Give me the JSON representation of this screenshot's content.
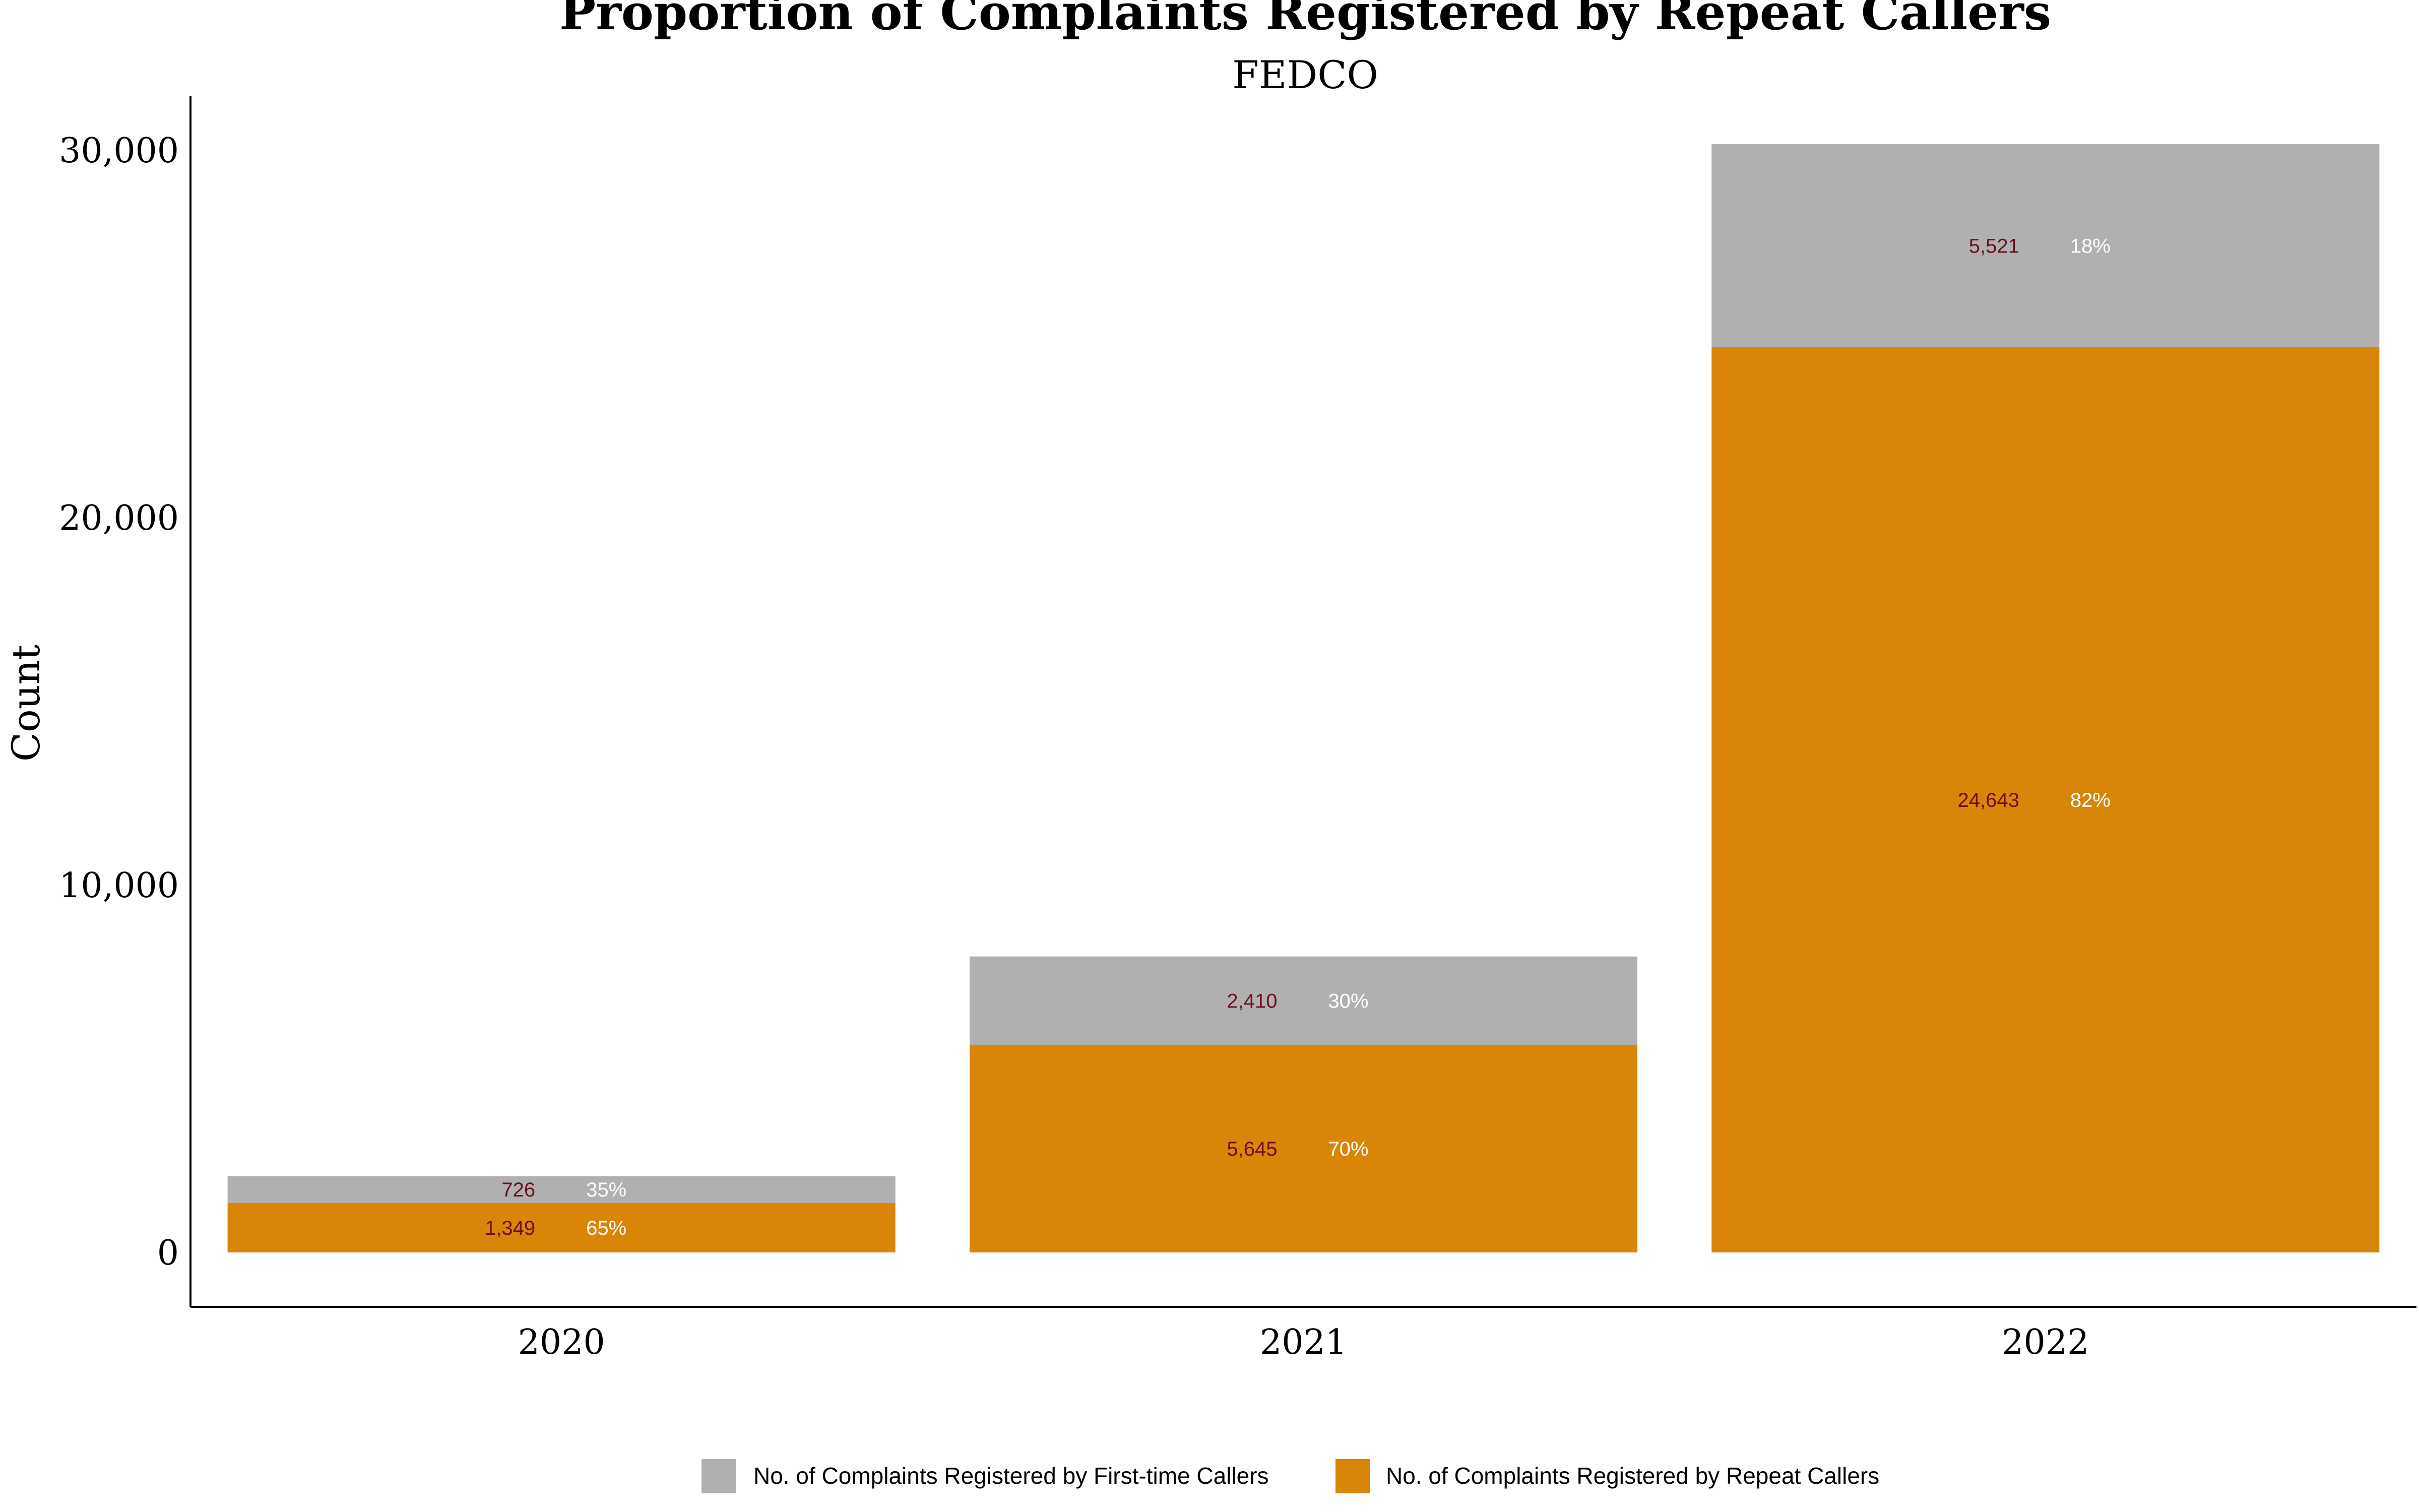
{
  "chart_data": {
    "type": "bar",
    "stacked": true,
    "title": "Proportion of Complaints Registered by Repeat Callers",
    "subtitle": "FEDCO",
    "xlabel": "",
    "ylabel": "Count",
    "ylim": [
      0,
      31800
    ],
    "yticks": [
      0,
      10000,
      20000,
      30000
    ],
    "ytick_labels": [
      "0",
      "10,000",
      "20,000",
      "30,000"
    ],
    "categories": [
      "2020",
      "2021",
      "2022"
    ],
    "legend_position": "bottom",
    "series": [
      {
        "name": "No. of Complaints Registered by Repeat Callers",
        "color": "#D98507",
        "values": [
          1349,
          5645,
          24643
        ],
        "value_labels": [
          "1,349",
          "5,645",
          "24,643"
        ],
        "percent_labels": [
          "65%",
          "70%",
          "82%"
        ]
      },
      {
        "name": "No. of Complaints Registered by First-time Callers",
        "color": "#B0B0B0",
        "values": [
          726,
          2410,
          5521
        ],
        "value_labels": [
          "726",
          "2,410",
          "5,521"
        ],
        "percent_labels": [
          "35%",
          "30%",
          "18%"
        ]
      }
    ],
    "legend_order": [
      1,
      0
    ],
    "value_label_color": "#6B0F1A",
    "percent_label_color": "#FFFFFF",
    "axis_color": "#000000"
  }
}
